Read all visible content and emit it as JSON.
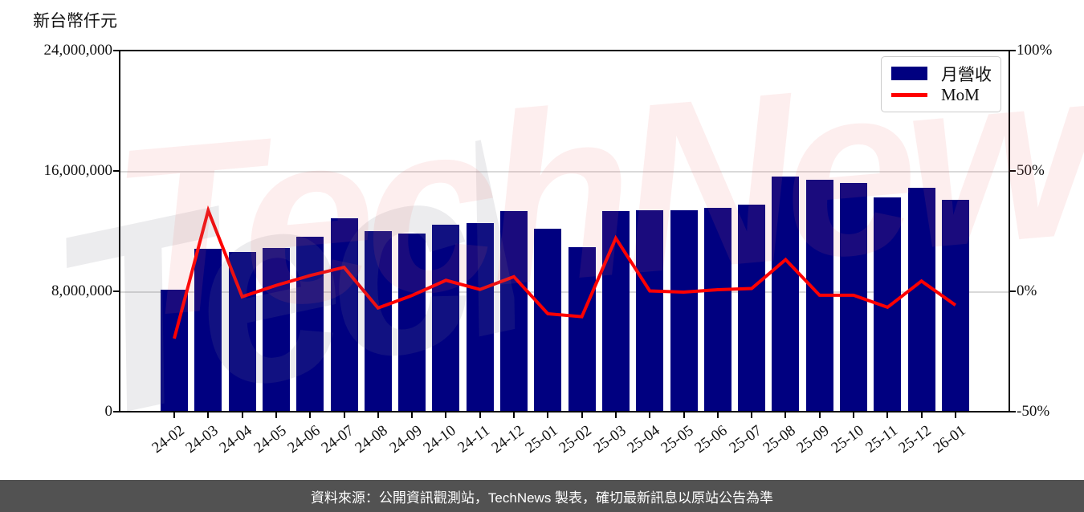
{
  "footer": {
    "text": "資料來源：公開資訊觀測站，TechNews 製表，確切最新訊息以原站公告為準",
    "bg": "#525252",
    "color": "#ffffff"
  },
  "watermark": {
    "text": "TechNews"
  },
  "legend": {
    "items": [
      {
        "label": "月營收",
        "type": "bar",
        "color": "#000080"
      },
      {
        "label": "MoM",
        "type": "line",
        "color": "#ff0000"
      }
    ]
  },
  "colors": {
    "bar": "#000080",
    "line": "#ff0000",
    "grid": "#d9d9d9",
    "axis": "#000000"
  },
  "chart_data": {
    "type": "bar+line",
    "title": "",
    "categories": [
      "24-02",
      "24-03",
      "24-04",
      "24-05",
      "24-06",
      "24-07",
      "24-08",
      "24-09",
      "24-10",
      "24-11",
      "24-12",
      "25-01",
      "25-02",
      "25-03",
      "25-04",
      "25-05",
      "25-06",
      "25-07",
      "25-08",
      "25-09",
      "25-10",
      "25-11",
      "25-12",
      "26-01"
    ],
    "series": [
      {
        "name": "月營收",
        "type": "bar",
        "axis": "left",
        "color": "#000080",
        "values": [
          8030000,
          10750000,
          10550000,
          10850000,
          11600000,
          12800000,
          11950000,
          11780000,
          12360000,
          12500000,
          13300000,
          12100000,
          10870000,
          13300000,
          13360000,
          13360000,
          13500000,
          13700000,
          15550000,
          15350000,
          15150000,
          14200000,
          14850000,
          14050000
        ]
      },
      {
        "name": "MoM",
        "type": "line",
        "axis": "right",
        "unit": "%",
        "color": "#ff0000",
        "values": [
          -19.3,
          33.9,
          -1.9,
          2.8,
          6.9,
          10.3,
          -6.6,
          -1.4,
          4.9,
          1.1,
          6.4,
          -9.0,
          -10.2,
          22.4,
          0.5,
          0.0,
          1.0,
          1.5,
          13.5,
          -1.3,
          -1.3,
          -6.3,
          4.6,
          -5.4
        ]
      }
    ],
    "left_axis": {
      "label": "新台幣仟元",
      "min": 0,
      "max": 24000000,
      "ticks": [
        {
          "value": 0,
          "label": "0"
        },
        {
          "value": 8000000,
          "label": "8,000,000"
        },
        {
          "value": 16000000,
          "label": "16,000,000"
        },
        {
          "value": 24000000,
          "label": "24,000,000"
        }
      ]
    },
    "right_axis": {
      "min": -50,
      "max": 100,
      "unit": "%",
      "ticks": [
        {
          "value": -50,
          "label": "-50%"
        },
        {
          "value": 0,
          "label": "0%"
        },
        {
          "value": 50,
          "label": "50%"
        },
        {
          "value": 100,
          "label": "100%"
        }
      ]
    },
    "grid": "horizontal",
    "legend_position": "upper right"
  }
}
